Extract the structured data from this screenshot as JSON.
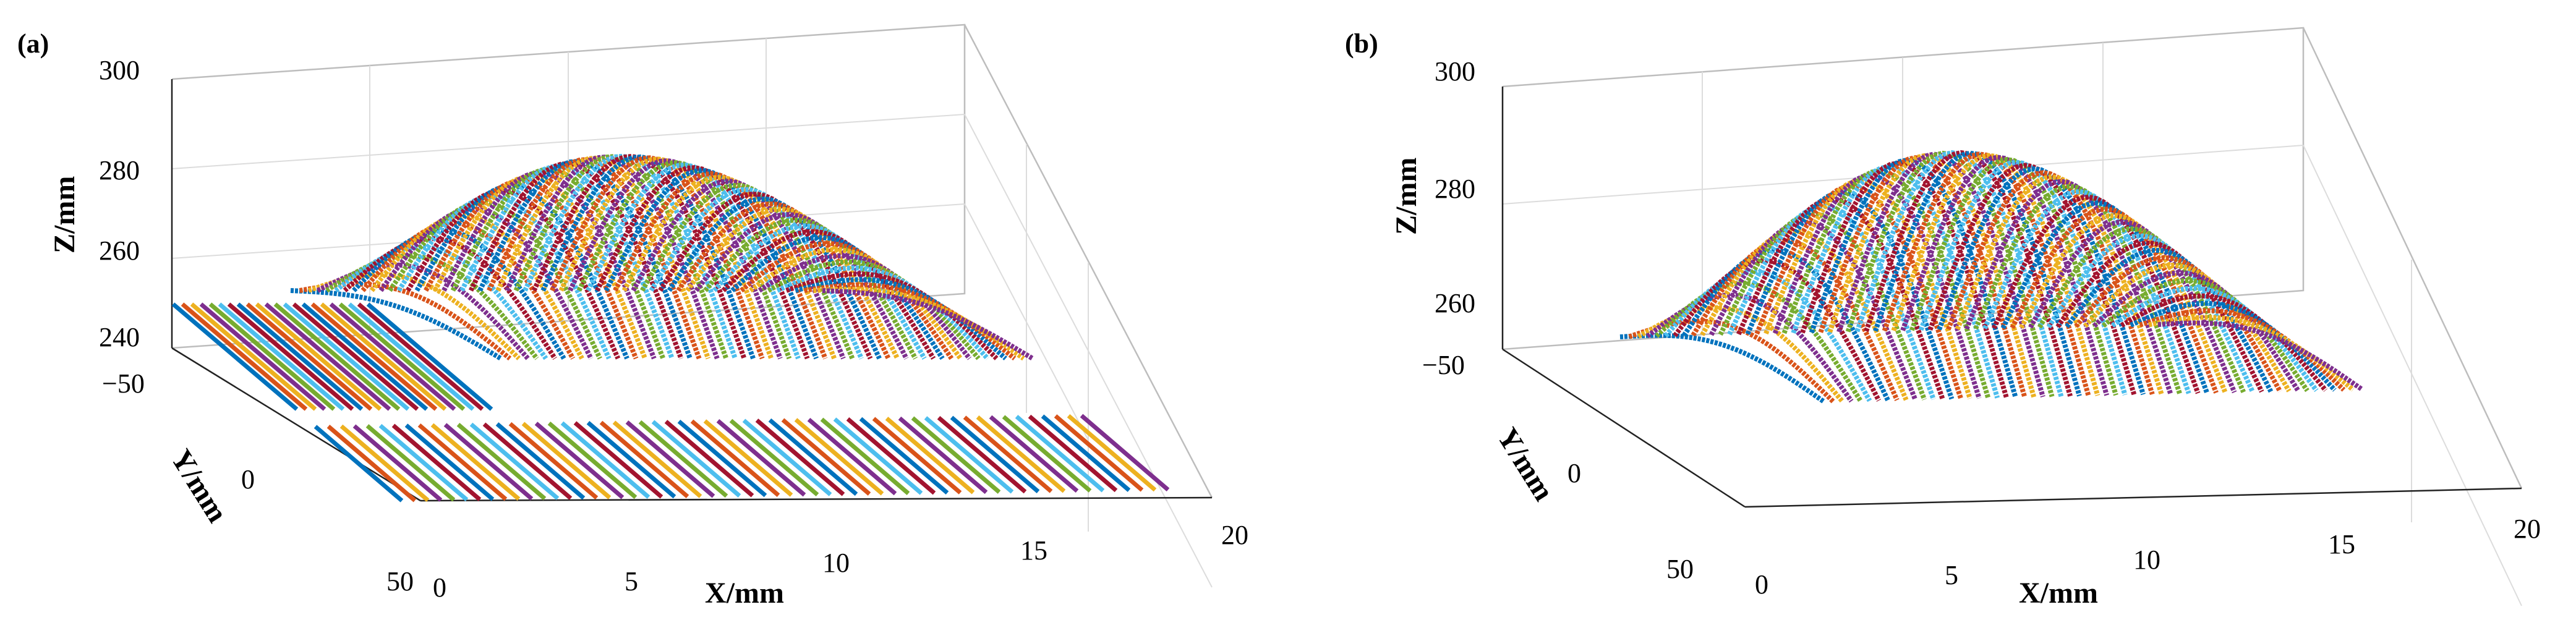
{
  "chart_data": [
    {
      "type": "scatter",
      "panel": "(a)",
      "xlabel": "X/mm",
      "ylabel": "Y/mm",
      "zlabel": "Z/mm",
      "xlim": [
        0,
        20
      ],
      "ylim": [
        -50,
        50
      ],
      "zlim": [
        240,
        300
      ],
      "xticks": [
        "0",
        "5",
        "10",
        "15",
        "20"
      ],
      "yticks": [
        "50",
        "0",
        "−50"
      ],
      "zticks": [
        "240",
        "260",
        "280",
        "300"
      ],
      "includes_base_plane": true,
      "scan_lines": 60
    },
    {
      "type": "scatter",
      "panel": "(b)",
      "xlabel": "X/mm",
      "ylabel": "Y/mm",
      "zlabel": "Z/mm",
      "xlim": [
        0,
        20
      ],
      "ylim": [
        -50,
        50
      ],
      "zlim": [
        255,
        300
      ],
      "xticks": [
        "0",
        "5",
        "10",
        "15",
        "20"
      ],
      "yticks": [
        "50",
        "0",
        "−50"
      ],
      "zticks": [
        "260",
        "280",
        "300"
      ],
      "includes_base_plane": false,
      "scan_lines": 60
    }
  ],
  "colors": [
    "#0072BD",
    "#D95319",
    "#EDB120",
    "#7E2F8E",
    "#77AC30",
    "#4DBEEE",
    "#A2142F"
  ]
}
